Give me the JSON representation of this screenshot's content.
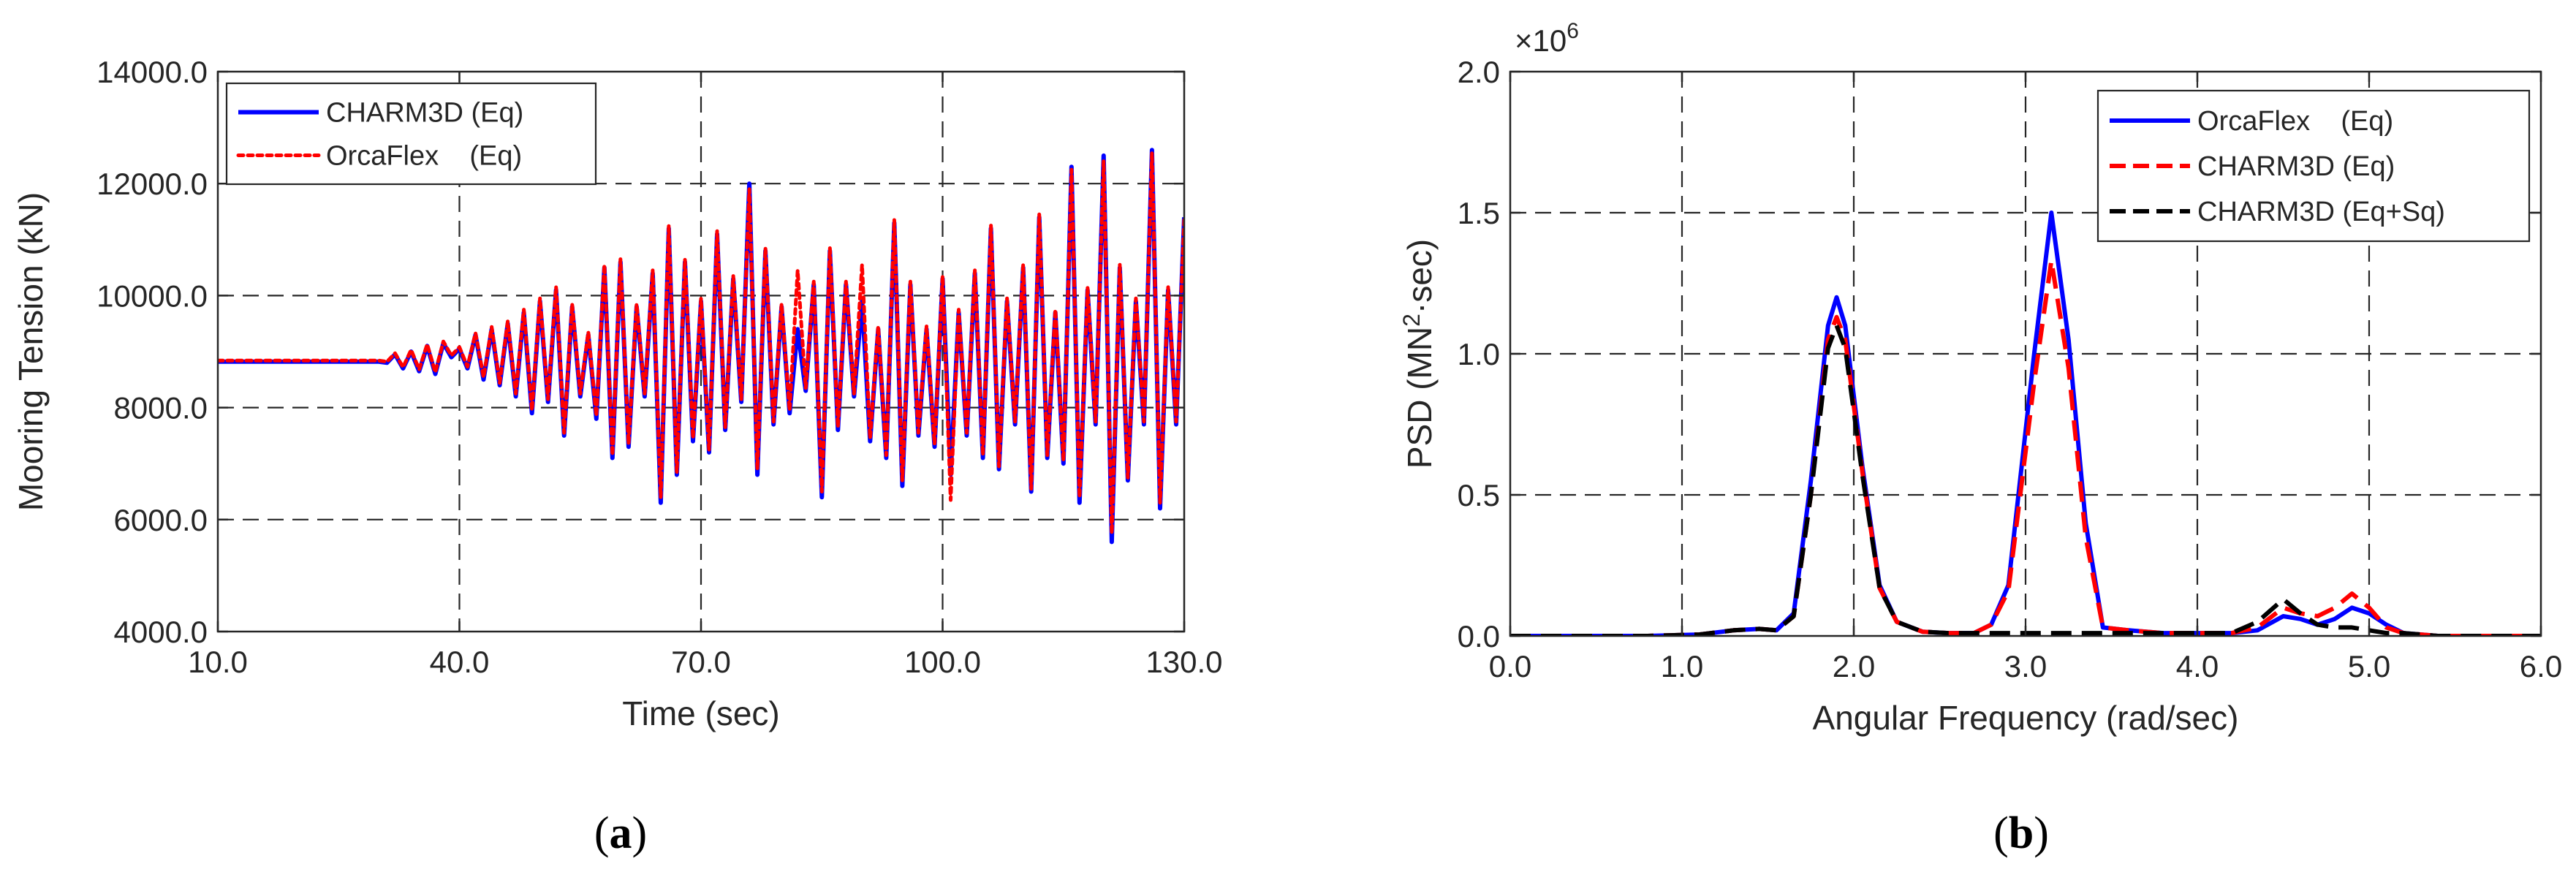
{
  "chart_data": [
    {
      "type": "line",
      "panel_label": {
        "open": "(",
        "letter": "a",
        "close": ")"
      },
      "xlabel": "Time (sec)",
      "ylabel": "Mooring Tension (kN)",
      "xlim": [
        10,
        130
      ],
      "ylim": [
        4000,
        14000
      ],
      "xticks": [
        10,
        40,
        70,
        100,
        130
      ],
      "xtick_labels": [
        "10.0",
        "40.0",
        "70.0",
        "100.0",
        "130.0"
      ],
      "yticks": [
        4000,
        6000,
        8000,
        10000,
        12000,
        14000
      ],
      "ytick_labels": [
        "4000.0",
        "6000.0",
        "8000.0",
        "10000.0",
        "12000.0",
        "14000.0"
      ],
      "grid": true,
      "legend_position": "top-left",
      "series": [
        {
          "name": "CHARM3D (Eq)",
          "color": "#0000ff",
          "style": "solid",
          "x": [
            10,
            14,
            18,
            22,
            26,
            30,
            31,
            32,
            33,
            34,
            35,
            36,
            37,
            38,
            39,
            40,
            41,
            42,
            43,
            44,
            45,
            46,
            47,
            48,
            49,
            50,
            51,
            52,
            53,
            54,
            55,
            56,
            57,
            58,
            59,
            60,
            61,
            62,
            63,
            64,
            65,
            66,
            67,
            68,
            69,
            70,
            71,
            72,
            73,
            74,
            75,
            76,
            77,
            78,
            79,
            80,
            81,
            82,
            83,
            84,
            85,
            86,
            87,
            88,
            89,
            90,
            91,
            92,
            93,
            94,
            95,
            96,
            97,
            98,
            99,
            100,
            101,
            102,
            103,
            104,
            105,
            106,
            107,
            108,
            109,
            110,
            111,
            112,
            113,
            114,
            115,
            116,
            117,
            118,
            119,
            120,
            121,
            122,
            123,
            124,
            125,
            126,
            127,
            128,
            129,
            130
          ],
          "y": [
            8820,
            8820,
            8820,
            8820,
            8820,
            8820,
            8800,
            8950,
            8700,
            9000,
            8650,
            9100,
            8600,
            9150,
            8900,
            9050,
            8700,
            9300,
            8500,
            9400,
            8400,
            9500,
            8200,
            9700,
            7900,
            9900,
            8100,
            10100,
            7500,
            9800,
            8200,
            9300,
            7800,
            10500,
            7100,
            10600,
            7300,
            9800,
            8200,
            10400,
            6300,
            11200,
            6800,
            10600,
            7400,
            9900,
            7200,
            11100,
            7600,
            10300,
            8100,
            12000,
            6800,
            10800,
            7700,
            9800,
            7900,
            9400,
            8300,
            10200,
            6400,
            10800,
            7600,
            10200,
            8200,
            9900,
            7400,
            9400,
            7100,
            11300,
            6600,
            10200,
            7500,
            9400,
            7300,
            10300,
            6800,
            9700,
            7500,
            10400,
            7100,
            11200,
            6900,
            9900,
            7700,
            10500,
            6500,
            11400,
            7100,
            9700,
            7000,
            12300,
            6300,
            10100,
            7700,
            12500,
            5600,
            10500,
            6700,
            9900,
            7700,
            12600,
            6200,
            10100,
            7700,
            11400
          ]
        },
        {
          "name": "OrcaFlex    (Eq)",
          "color": "#ff0000",
          "style": "dotted",
          "x": [
            10,
            14,
            18,
            22,
            26,
            30,
            31,
            32,
            33,
            34,
            35,
            36,
            37,
            38,
            39,
            40,
            41,
            42,
            43,
            44,
            45,
            46,
            47,
            48,
            49,
            50,
            51,
            52,
            53,
            54,
            55,
            56,
            57,
            58,
            59,
            60,
            61,
            62,
            63,
            64,
            65,
            66,
            67,
            68,
            69,
            70,
            71,
            72,
            73,
            74,
            75,
            76,
            77,
            78,
            79,
            80,
            81,
            82,
            83,
            84,
            85,
            86,
            87,
            88,
            89,
            90,
            91,
            92,
            93,
            94,
            95,
            96,
            97,
            98,
            99,
            100,
            101,
            102,
            103,
            104,
            105,
            106,
            107,
            108,
            109,
            110,
            111,
            112,
            113,
            114,
            115,
            116,
            117,
            118,
            119,
            120,
            121,
            122,
            123,
            124,
            125,
            126,
            127,
            128,
            129,
            130
          ],
          "y": [
            8840,
            8840,
            8840,
            8840,
            8840,
            8840,
            8820,
            8970,
            8720,
            9030,
            8680,
            9130,
            8630,
            9180,
            8930,
            9080,
            8730,
            9330,
            8540,
            9440,
            8440,
            9540,
            8250,
            9750,
            7950,
            9950,
            8150,
            10150,
            7550,
            9850,
            8250,
            9350,
            7850,
            10550,
            7150,
            10650,
            7350,
            9850,
            8250,
            10450,
            6400,
            11250,
            6850,
            10650,
            7450,
            9950,
            7250,
            11150,
            7650,
            10350,
            8150,
            11900,
            6900,
            10850,
            7750,
            9850,
            7950,
            10450,
            8350,
            10250,
            6500,
            10850,
            7650,
            10250,
            8250,
            10550,
            7450,
            9450,
            7150,
            11350,
            6700,
            10250,
            7550,
            9450,
            7350,
            10350,
            6350,
            9750,
            7550,
            10450,
            7150,
            11250,
            6950,
            9950,
            7750,
            10550,
            6550,
            11450,
            7150,
            9750,
            7050,
            12250,
            6400,
            10150,
            7750,
            12400,
            5750,
            10550,
            6750,
            9950,
            7750,
            12550,
            6300,
            10150,
            7750,
            11350
          ]
        }
      ]
    },
    {
      "type": "line",
      "panel_label": {
        "open": "(",
        "letter": "b",
        "close": ")"
      },
      "xlabel": "Angular Frequency (rad/sec)",
      "ylabel": {
        "main": "PSD (MN",
        "sup": "2",
        "tail": "·sec)"
      },
      "multiplier": {
        "base": "×10",
        "exp": "6"
      },
      "xlim": [
        0,
        6
      ],
      "ylim": [
        0,
        2
      ],
      "xticks": [
        0,
        1,
        2,
        3,
        4,
        5,
        6
      ],
      "xtick_labels": [
        "0.0",
        "1.0",
        "2.0",
        "3.0",
        "4.0",
        "5.0",
        "6.0"
      ],
      "yticks": [
        0,
        0.5,
        1.0,
        1.5,
        2.0
      ],
      "ytick_labels": [
        "0.0",
        "0.5",
        "1.0",
        "1.5",
        "2.0"
      ],
      "grid": true,
      "legend_position": "top-right",
      "series": [
        {
          "name": "OrcaFlex    (Eq)",
          "color": "#0000ff",
          "style": "solid",
          "x": [
            0,
            0.4,
            0.8,
            1.1,
            1.3,
            1.45,
            1.55,
            1.65,
            1.75,
            1.85,
            1.9,
            1.95,
            2.05,
            2.15,
            2.25,
            2.4,
            2.55,
            2.7,
            2.8,
            2.9,
            3.05,
            3.15,
            3.25,
            3.35,
            3.45,
            3.6,
            3.8,
            4.0,
            4.2,
            4.35,
            4.5,
            4.6,
            4.7,
            4.8,
            4.9,
            5.0,
            5.1,
            5.2,
            5.4,
            5.7,
            6.0
          ],
          "y": [
            0,
            0,
            0,
            0.005,
            0.02,
            0.025,
            0.02,
            0.08,
            0.55,
            1.1,
            1.2,
            1.1,
            0.6,
            0.18,
            0.05,
            0.015,
            0.01,
            0.01,
            0.04,
            0.18,
            1.0,
            1.5,
            1.05,
            0.4,
            0.03,
            0.02,
            0.01,
            0.01,
            0.01,
            0.02,
            0.07,
            0.06,
            0.04,
            0.06,
            0.1,
            0.08,
            0.04,
            0.01,
            0,
            0,
            0
          ]
        },
        {
          "name": "CHARM3D (Eq)",
          "color": "#ff0000",
          "style": "dashed",
          "x": [
            0,
            0.4,
            0.8,
            1.1,
            1.3,
            1.45,
            1.55,
            1.65,
            1.75,
            1.85,
            1.9,
            1.95,
            2.05,
            2.15,
            2.25,
            2.4,
            2.55,
            2.7,
            2.8,
            2.9,
            3.05,
            3.15,
            3.25,
            3.35,
            3.45,
            3.6,
            3.8,
            4.0,
            4.2,
            4.35,
            4.5,
            4.6,
            4.7,
            4.8,
            4.9,
            5.0,
            5.1,
            5.2,
            5.4,
            5.7,
            6.0
          ],
          "y": [
            0,
            0,
            0,
            0.005,
            0.02,
            0.025,
            0.02,
            0.07,
            0.5,
            1.05,
            1.13,
            1.05,
            0.58,
            0.17,
            0.05,
            0.015,
            0.01,
            0.01,
            0.04,
            0.16,
            0.9,
            1.33,
            0.95,
            0.35,
            0.03,
            0.02,
            0.01,
            0.01,
            0.01,
            0.03,
            0.1,
            0.08,
            0.07,
            0.1,
            0.15,
            0.1,
            0.03,
            0.01,
            0,
            0,
            0
          ]
        },
        {
          "name": "CHARM3D (Eq+Sq)",
          "color": "#000000",
          "style": "dashed",
          "x": [
            0,
            0.4,
            0.8,
            1.1,
            1.3,
            1.45,
            1.55,
            1.65,
            1.75,
            1.85,
            1.9,
            1.95,
            2.05,
            2.15,
            2.25,
            2.4,
            2.55,
            2.7,
            2.8,
            2.9,
            3.05,
            3.15,
            3.25,
            3.35,
            3.45,
            3.6,
            3.8,
            4.0,
            4.2,
            4.35,
            4.5,
            4.6,
            4.7,
            4.8,
            4.9,
            5.0,
            5.1,
            5.2,
            5.4,
            5.7,
            6.0
          ],
          "y": [
            0,
            0,
            0,
            0.005,
            0.02,
            0.025,
            0.02,
            0.07,
            0.5,
            1.02,
            1.1,
            1.02,
            0.57,
            0.17,
            0.05,
            0.015,
            0.01,
            0.01,
            0.01,
            0.01,
            0.01,
            0.01,
            0.01,
            0.01,
            0.01,
            0.01,
            0.01,
            0.01,
            0.01,
            0.05,
            0.13,
            0.08,
            0.04,
            0.03,
            0.03,
            0.02,
            0.01,
            0.01,
            0,
            0,
            0
          ]
        }
      ]
    }
  ]
}
